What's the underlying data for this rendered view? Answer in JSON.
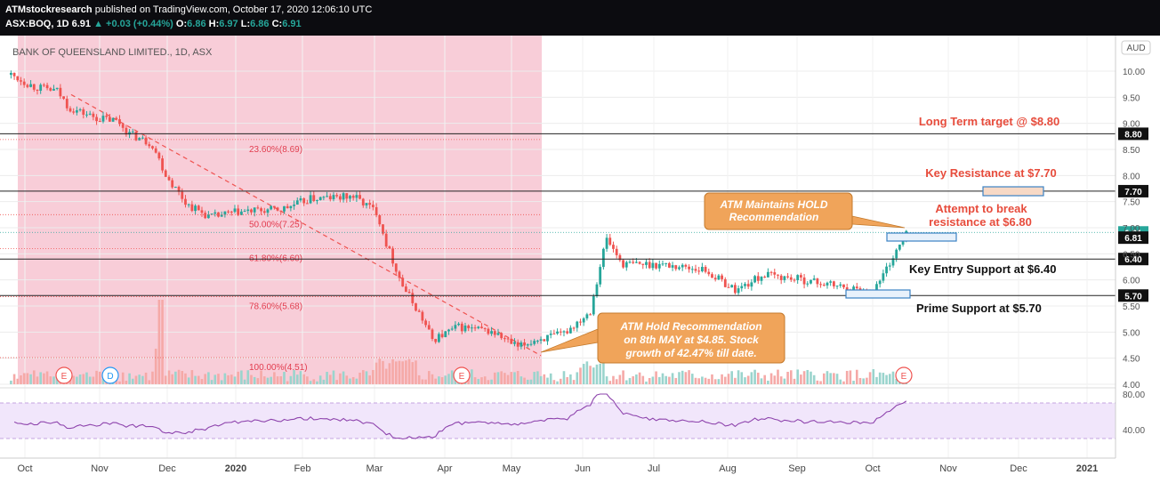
{
  "header": {
    "publisher": "ATMstockresearch",
    "published_text": "published on TradingView.com, October 17, 2020 12:06:10 UTC",
    "symbol": "ASX:BOQ, 1D",
    "last": "6.91",
    "change": "+0.03 (+0.44%)",
    "open_label": "O:",
    "open": "6.86",
    "high_label": "H:",
    "high": "6.97",
    "low_label": "L:",
    "low": "6.86",
    "close_label": "C:",
    "close": "6.91"
  },
  "chart_data": {
    "type": "candlestick",
    "title": "BANK OF QUEENSLAND LIMITED., 1D, ASX",
    "currency": "AUD",
    "ylim": [
      4.0,
      10.25
    ],
    "y_ticks": [
      "10.00",
      "9.50",
      "9.00",
      "8.50",
      "8.00",
      "7.50",
      "7.00",
      "6.50",
      "6.00",
      "5.50",
      "5.00",
      "4.50",
      "4.00"
    ],
    "x_ticks": [
      "Oct",
      "Nov",
      "Dec",
      "2020",
      "Feb",
      "Mar",
      "Apr",
      "May",
      "Jun",
      "Jul",
      "Aug",
      "Sep",
      "Oct",
      "Nov",
      "Dec",
      "2021"
    ],
    "price_path": [
      {
        "date": "2019-09-25",
        "close": 9.93
      },
      {
        "date": "2019-10-05",
        "close": 9.7
      },
      {
        "date": "2019-10-15",
        "close": 9.62
      },
      {
        "date": "2019-10-20",
        "close": 9.3
      },
      {
        "date": "2019-11-01",
        "close": 9.1
      },
      {
        "date": "2019-11-10",
        "close": 9.05
      },
      {
        "date": "2019-11-15",
        "close": 8.8
      },
      {
        "date": "2019-11-25",
        "close": 8.6
      },
      {
        "date": "2019-12-01",
        "close": 8.0
      },
      {
        "date": "2019-12-10",
        "close": 7.45
      },
      {
        "date": "2019-12-20",
        "close": 7.2
      },
      {
        "date": "2020-01-01",
        "close": 7.3
      },
      {
        "date": "2020-01-20",
        "close": 7.35
      },
      {
        "date": "2020-02-01",
        "close": 7.55
      },
      {
        "date": "2020-02-20",
        "close": 7.6
      },
      {
        "date": "2020-03-01",
        "close": 7.3
      },
      {
        "date": "2020-03-05",
        "close": 6.7
      },
      {
        "date": "2020-03-12",
        "close": 5.9
      },
      {
        "date": "2020-03-20",
        "close": 5.3
      },
      {
        "date": "2020-03-25",
        "close": 4.85
      },
      {
        "date": "2020-04-05",
        "close": 5.1
      },
      {
        "date": "2020-04-20",
        "close": 5.0
      },
      {
        "date": "2020-05-01",
        "close": 4.7
      },
      {
        "date": "2020-05-08",
        "close": 4.85
      },
      {
        "date": "2020-05-20",
        "close": 4.95
      },
      {
        "date": "2020-06-01",
        "close": 5.4
      },
      {
        "date": "2020-06-08",
        "close": 6.8
      },
      {
        "date": "2020-06-15",
        "close": 6.3
      },
      {
        "date": "2020-07-01",
        "close": 6.3
      },
      {
        "date": "2020-07-20",
        "close": 6.2
      },
      {
        "date": "2020-08-03",
        "close": 5.8
      },
      {
        "date": "2020-08-15",
        "close": 6.1
      },
      {
        "date": "2020-09-01",
        "close": 6.0
      },
      {
        "date": "2020-09-20",
        "close": 5.85
      },
      {
        "date": "2020-10-01",
        "close": 5.75
      },
      {
        "date": "2020-10-08",
        "close": 6.3
      },
      {
        "date": "2020-10-16",
        "close": 6.91
      }
    ],
    "horizontal_levels": [
      {
        "label": "8.80",
        "value": 8.8
      },
      {
        "label": "7.70",
        "value": 7.7
      },
      {
        "label": "6.91",
        "value": 6.91,
        "current": true
      },
      {
        "label": "6.81",
        "value": 6.81
      },
      {
        "label": "6.40",
        "value": 6.4
      },
      {
        "label": "5.70",
        "value": 5.7
      }
    ],
    "fibonacci_levels": [
      {
        "label": "23.60%(8.69)",
        "value": 8.69
      },
      {
        "label": "50.00%(7.25)",
        "value": 7.25
      },
      {
        "label": "61.80%(6.60)",
        "value": 6.6
      },
      {
        "label": "78.60%(5.68)",
        "value": 5.68
      },
      {
        "label": "100.00%(4.51)",
        "value": 4.51
      }
    ],
    "annotations": [
      {
        "text": "Long Term target @ $8.80",
        "color": "#e74c3c"
      },
      {
        "text": "Key Resistance at $7.70",
        "color": "#e74c3c"
      },
      {
        "text": "Attempt to break",
        "color": "#e74c3c"
      },
      {
        "text": "resistance at $6.80",
        "color": "#e74c3c"
      },
      {
        "text": "Key Entry Support at $6.40",
        "color": "#111111"
      },
      {
        "text": "Prime Support at $5.70",
        "color": "#111111"
      }
    ],
    "callouts": [
      {
        "lines": [
          "ATM Maintains HOLD",
          "Recommendation"
        ]
      },
      {
        "lines": [
          "ATM Hold Recommendation",
          "on 8th MAY at $4.85. Stock",
          "growth of 42.47% till date."
        ]
      }
    ],
    "event_markers": [
      "E",
      "D",
      "E",
      "E"
    ],
    "rsi": {
      "ylim": [
        20,
        85
      ],
      "y_ticks": [
        "80.00",
        "40.00"
      ],
      "band": [
        30,
        70
      ]
    }
  },
  "colors": {
    "up": "#26a69a",
    "down": "#ef5350",
    "shade": "#f8cdd8",
    "annotation_red": "#e74c3c",
    "callout_fill": "#f0a45a",
    "rsi_line": "#8e44ad",
    "rsi_band": "#f1e6fb"
  }
}
